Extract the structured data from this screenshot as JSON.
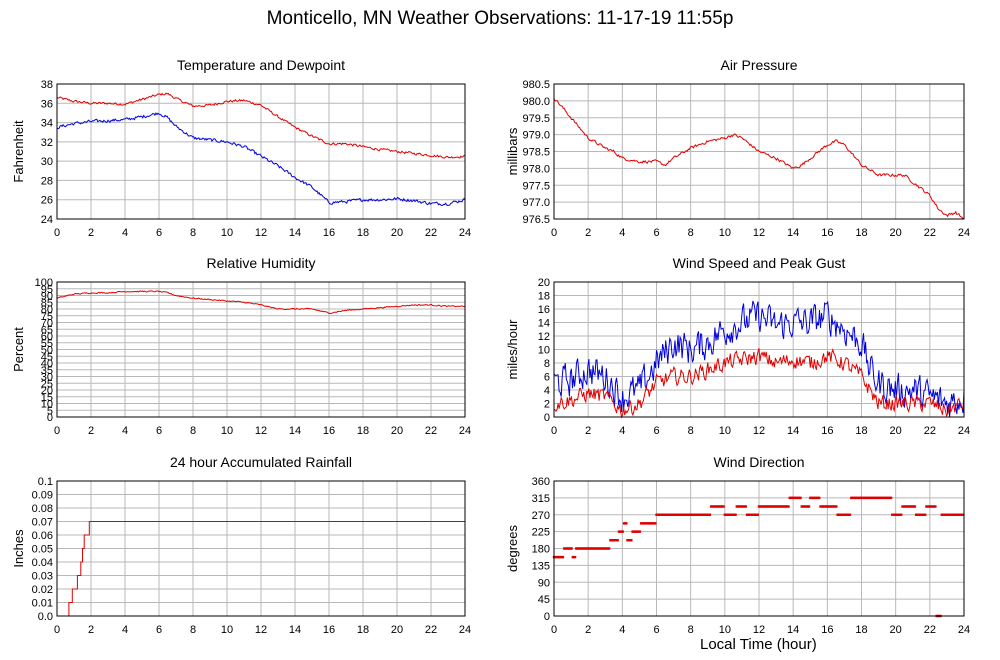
{
  "page": {
    "title": "Monticello, MN Weather Observations: 11-17-19 11:55p",
    "xlabel": "Local Time (hour)"
  },
  "colors": {
    "red": "#e00000",
    "blue": "#0000dd",
    "grid": "#b8b8b8",
    "frame": "#000000"
  },
  "chart_data": [
    {
      "title": "Temperature and Dewpoint",
      "ylabel": "Fahrenheit",
      "type": "line",
      "xlim": [
        0,
        24
      ],
      "ylim": [
        24,
        38
      ],
      "xticks": [
        0,
        2,
        4,
        6,
        8,
        10,
        12,
        14,
        16,
        18,
        20,
        22,
        24
      ],
      "yticks": [
        "24",
        "26",
        "28",
        "30",
        "32",
        "34",
        "36",
        "38"
      ],
      "grid": true,
      "series": [
        {
          "color": "red",
          "noise": 0.12,
          "x": [
            0,
            1,
            2,
            3,
            4,
            5,
            6,
            6.5,
            7,
            8,
            9,
            10,
            11,
            12,
            13,
            14,
            15,
            16,
            17,
            18,
            19,
            20,
            21,
            22,
            23,
            24
          ],
          "y": [
            36.6,
            36.2,
            36.0,
            36.0,
            35.9,
            36.4,
            36.9,
            37.0,
            36.5,
            35.7,
            35.8,
            36.2,
            36.3,
            35.8,
            34.6,
            33.5,
            32.6,
            31.8,
            31.8,
            31.5,
            31.2,
            31.0,
            30.8,
            30.6,
            30.4,
            30.5
          ]
        },
        {
          "color": "blue",
          "noise": 0.15,
          "x": [
            0,
            1,
            2,
            3,
            4,
            5,
            6,
            6.5,
            7,
            8,
            9,
            10,
            11,
            12,
            13,
            14,
            15,
            16,
            17,
            18,
            19,
            20,
            21,
            22,
            23,
            24
          ],
          "y": [
            33.5,
            33.9,
            34.1,
            34.2,
            34.3,
            34.6,
            35.0,
            34.5,
            33.6,
            32.4,
            32.2,
            32.0,
            31.5,
            30.5,
            29.5,
            28.3,
            27.3,
            25.7,
            25.8,
            26.0,
            26.0,
            26.1,
            25.9,
            25.6,
            25.6,
            26.0
          ]
        }
      ]
    },
    {
      "title": "Air Pressure",
      "ylabel": "millibars",
      "type": "line",
      "xlim": [
        0,
        24
      ],
      "ylim": [
        976.5,
        980.5
      ],
      "xticks": [
        0,
        2,
        4,
        6,
        8,
        10,
        12,
        14,
        16,
        18,
        20,
        22,
        24
      ],
      "yticks": [
        "976.5",
        "977.0",
        "977.5",
        "978.0",
        "978.5",
        "979.0",
        "979.5",
        "980.0",
        "980.5"
      ],
      "grid": true,
      "series": [
        {
          "color": "red",
          "noise": 0.04,
          "x": [
            0,
            0.5,
            1,
            1.5,
            2,
            3,
            3.5,
            4,
            5,
            6,
            6.5,
            7,
            8,
            9,
            10,
            10.5,
            11,
            12,
            13,
            14,
            14.5,
            15,
            16,
            16.5,
            17,
            18,
            19,
            20,
            20.5,
            21,
            22,
            22.5,
            23,
            23.5,
            24
          ],
          "y": [
            980.1,
            979.8,
            979.5,
            979.2,
            978.9,
            978.6,
            978.5,
            978.3,
            978.2,
            978.2,
            978.1,
            978.3,
            978.6,
            978.8,
            978.9,
            979.0,
            978.9,
            978.5,
            978.3,
            978.0,
            978.1,
            978.3,
            978.7,
            978.8,
            978.7,
            978.1,
            977.8,
            977.8,
            977.8,
            977.6,
            977.2,
            976.8,
            976.6,
            976.7,
            976.5
          ]
        }
      ]
    },
    {
      "title": "Relative Humidity",
      "ylabel": "Percent",
      "type": "line",
      "xlim": [
        0,
        24
      ],
      "ylim": [
        0,
        100
      ],
      "xticks": [
        0,
        2,
        4,
        6,
        8,
        10,
        12,
        14,
        16,
        18,
        20,
        22,
        24
      ],
      "yticks": [
        "0",
        "5",
        "10",
        "15",
        "20",
        "25",
        "30",
        "35",
        "40",
        "45",
        "50",
        "55",
        "60",
        "65",
        "70",
        "75",
        "80",
        "85",
        "90",
        "95",
        "100"
      ],
      "grid": true,
      "series": [
        {
          "color": "red",
          "noise": 0.4,
          "x": [
            0,
            1,
            2,
            3,
            4,
            5,
            6,
            6.5,
            7,
            8,
            9,
            10,
            11,
            12,
            13,
            14,
            15,
            16,
            17,
            18,
            19,
            20,
            21,
            22,
            23,
            24
          ],
          "y": [
            88,
            91,
            92,
            92,
            93,
            93,
            93,
            92,
            90,
            88,
            87,
            86,
            85,
            83,
            80,
            80,
            80,
            77,
            79,
            80,
            81,
            82,
            83,
            83,
            82,
            82
          ]
        }
      ]
    },
    {
      "title": "Wind Speed and Peak Gust",
      "ylabel": "miles/hour",
      "type": "line",
      "xlim": [
        0,
        24
      ],
      "ylim": [
        0,
        20
      ],
      "xticks": [
        0,
        2,
        4,
        6,
        8,
        10,
        12,
        14,
        16,
        18,
        20,
        22,
        24
      ],
      "yticks": [
        "0",
        "2",
        "4",
        "6",
        "8",
        "10",
        "12",
        "14",
        "16",
        "18",
        "20"
      ],
      "grid": true,
      "series": [
        {
          "color": "blue",
          "noise": 2.2,
          "x": [
            0,
            1,
            2,
            3,
            3.5,
            4,
            5,
            6,
            7,
            8,
            9,
            10,
            11,
            12,
            13,
            14,
            15,
            16,
            17,
            18,
            18.5,
            19,
            20,
            21,
            22,
            23,
            24
          ],
          "y": [
            5,
            5.5,
            7,
            6,
            4.5,
            3,
            4,
            8,
            11,
            10,
            11,
            13,
            14,
            15,
            13.5,
            14,
            14,
            15,
            13,
            11,
            7,
            5,
            4,
            4,
            3,
            2,
            3
          ]
        },
        {
          "color": "red",
          "noise": 1.1,
          "x": [
            0,
            1,
            2,
            3,
            3.5,
            4,
            5,
            6,
            7,
            8,
            9,
            10,
            11,
            12,
            13,
            14,
            15,
            16,
            17,
            18,
            18.5,
            19,
            20,
            21,
            22,
            23,
            24
          ],
          "y": [
            2,
            2.5,
            3.5,
            3,
            2,
            1,
            2,
            5,
            6,
            6,
            7,
            8,
            8.5,
            9,
            8,
            8.5,
            8,
            9,
            8,
            6,
            4,
            2,
            2,
            2,
            2,
            1,
            2
          ]
        }
      ]
    },
    {
      "title": "24 hour Accumulated Rainfall",
      "ylabel": "Inches",
      "type": "line",
      "xlim": [
        0,
        24
      ],
      "ylim": [
        0,
        0.1
      ],
      "xticks": [
        0,
        2,
        4,
        6,
        8,
        10,
        12,
        14,
        16,
        18,
        20,
        22,
        24
      ],
      "yticks": [
        "0.0",
        "0.01",
        "0.02",
        "0.03",
        "0.04",
        "0.05",
        "0.06",
        "0.07",
        "0.08",
        "0.09",
        "0.1"
      ],
      "grid": true,
      "series": [
        {
          "color": "red",
          "step": true,
          "noise": 0,
          "x": [
            0,
            0.5,
            0.7,
            0.9,
            1.1,
            1.2,
            1.4,
            1.5,
            1.6,
            1.8,
            1.9,
            2.0,
            24
          ],
          "y": [
            0,
            0,
            0.01,
            0.02,
            0.02,
            0.03,
            0.04,
            0.05,
            0.06,
            0.06,
            0.07,
            0.07,
            0.07
          ]
        }
      ]
    },
    {
      "title": "Wind Direction",
      "ylabel": "degrees",
      "type": "scatter",
      "xlim": [
        0,
        24
      ],
      "ylim": [
        0,
        360
      ],
      "xticks": [
        0,
        2,
        4,
        6,
        8,
        10,
        12,
        14,
        16,
        18,
        20,
        22,
        24
      ],
      "yticks": [
        "0",
        "45",
        "90",
        "135",
        "180",
        "225",
        "270",
        "315",
        "360"
      ],
      "grid": true,
      "series": [
        {
          "color": "red",
          "segments": [
            [
              0.0,
              0.6,
              157
            ],
            [
              0.6,
              1.1,
              180
            ],
            [
              1.1,
              1.3,
              157
            ],
            [
              1.3,
              3.3,
              180
            ],
            [
              3.3,
              3.8,
              202
            ],
            [
              3.8,
              4.1,
              225
            ],
            [
              4.1,
              4.3,
              247
            ],
            [
              4.3,
              4.6,
              202
            ],
            [
              4.6,
              5.1,
              225
            ],
            [
              5.1,
              6.0,
              247
            ],
            [
              6.0,
              9.2,
              270
            ],
            [
              9.2,
              10.0,
              292
            ],
            [
              10.0,
              10.7,
              270
            ],
            [
              10.7,
              11.3,
              292
            ],
            [
              11.3,
              12.0,
              270
            ],
            [
              12.0,
              13.8,
              292
            ],
            [
              13.8,
              14.5,
              315
            ],
            [
              14.5,
              15.0,
              292
            ],
            [
              15.0,
              15.6,
              315
            ],
            [
              15.6,
              16.6,
              292
            ],
            [
              16.6,
              17.4,
              270
            ],
            [
              17.4,
              18.4,
              315
            ],
            [
              18.4,
              19.8,
              315
            ],
            [
              19.8,
              20.4,
              270
            ],
            [
              20.4,
              21.2,
              292
            ],
            [
              21.2,
              21.8,
              270
            ],
            [
              21.8,
              22.4,
              292
            ],
            [
              22.4,
              22.7,
              0
            ],
            [
              22.7,
              23.3,
              270
            ],
            [
              23.3,
              24.0,
              270
            ]
          ]
        }
      ]
    }
  ]
}
